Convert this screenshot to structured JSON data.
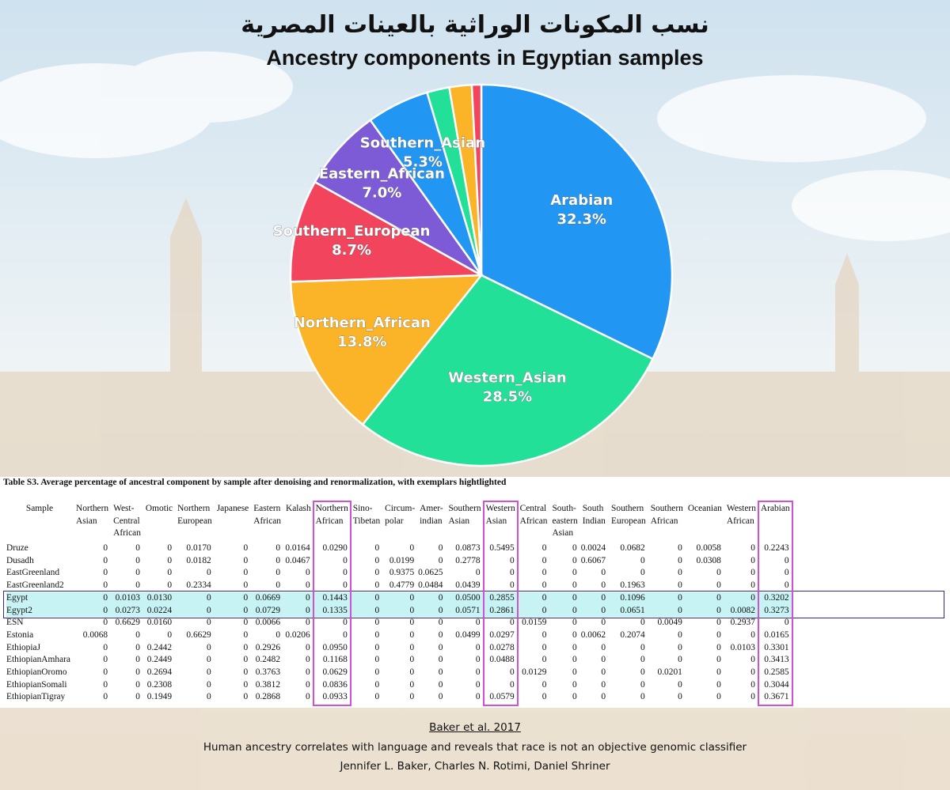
{
  "title_ar": "نسب المكونات الوراثية بالعينات المصرية",
  "title_en": "Ancestry components in Egyptian samples",
  "chart_data": {
    "type": "pie",
    "title": "Ancestry components in Egyptian samples",
    "slices": [
      {
        "label": "Arabian",
        "value": 32.3,
        "value_label": "32.3%",
        "color": "#2196f3"
      },
      {
        "label": "Western_Asian",
        "value": 28.5,
        "value_label": "28.5%",
        "color": "#22e098"
      },
      {
        "label": "Northern_African",
        "value": 13.8,
        "value_label": "13.8%",
        "color": "#fbb328"
      },
      {
        "label": "Southern_European",
        "value": 8.7,
        "value_label": "8.7%",
        "color": "#f2445c"
      },
      {
        "label": "Eastern_African",
        "value": 7.0,
        "value_label": "7.0%",
        "color": "#7d5bd6"
      },
      {
        "label": "Southern_Asian",
        "value": 5.3,
        "value_label": "5.3%",
        "color": "#2196f3"
      },
      {
        "label": "",
        "value": 1.9,
        "value_label": "",
        "color": "#22e098"
      },
      {
        "label": "",
        "value": 1.9,
        "value_label": "",
        "color": "#fbb328"
      },
      {
        "label": "",
        "value": 0.8,
        "value_label": "",
        "color": "#f2445c"
      }
    ]
  },
  "table": {
    "caption": "Table S3. Average percentage of ancestral component by sample after denoising and renormalization, with exemplars hightlighted",
    "columns": [
      "Sample",
      "Northern\nAsian",
      "West-\nCentral\nAfrican",
      "Omotic",
      "Northern\nEuropean",
      "Japanese",
      "Eastern\nAfrican",
      "Kalash",
      "Northern\nAfrican",
      "Sino-\nTibetan",
      "Circum-\npolar",
      "Amer-\nindian",
      "Southern\nAsian",
      "Western\nAsian",
      "Central\nAfrican",
      "South-\neastern\nAsian",
      "South\nIndian",
      "Southern\nEuropean",
      "Southern\nAfrican",
      "Oceanian",
      "Western\nAfrican",
      "Arabian"
    ],
    "rows": [
      [
        "Druze",
        "0",
        "0",
        "0",
        "0.0170",
        "0",
        "0",
        "0.0164",
        "0.0290",
        "0",
        "0",
        "0",
        "0.0873",
        "0.5495",
        "0",
        "0",
        "0.0024",
        "0.0682",
        "0",
        "0.0058",
        "0",
        "0.2243"
      ],
      [
        "Dusadh",
        "0",
        "0",
        "0",
        "0.0182",
        "0",
        "0",
        "0.0467",
        "0",
        "0",
        "0.0199",
        "0",
        "0.2778",
        "0",
        "0",
        "0",
        "0.6067",
        "0",
        "0",
        "0.0308",
        "0",
        "0"
      ],
      [
        "EastGreenland",
        "0",
        "0",
        "0",
        "0",
        "0",
        "0",
        "0",
        "0",
        "0",
        "0.9375",
        "0.0625",
        "0",
        "0",
        "0",
        "0",
        "0",
        "0",
        "0",
        "0",
        "0",
        "0"
      ],
      [
        "EastGreenland2",
        "0",
        "0",
        "0",
        "0.2334",
        "0",
        "0",
        "0",
        "0",
        "0",
        "0.4779",
        "0.0484",
        "0.0439",
        "0",
        "0",
        "0",
        "0",
        "0.1963",
        "0",
        "0",
        "0",
        "0"
      ],
      [
        "Egypt",
        "0",
        "0.0103",
        "0.0130",
        "0",
        "0",
        "0.0669",
        "0",
        "0.1443",
        "0",
        "0",
        "0",
        "0.0500",
        "0.2855",
        "0",
        "0",
        "0",
        "0.1096",
        "0",
        "0",
        "0",
        "0.3202"
      ],
      [
        "Egypt2",
        "0",
        "0.0273",
        "0.0224",
        "0",
        "0",
        "0.0729",
        "0",
        "0.1335",
        "0",
        "0",
        "0",
        "0.0571",
        "0.2861",
        "0",
        "0",
        "0",
        "0.0651",
        "0",
        "0",
        "0.0082",
        "0.3273"
      ],
      [
        "ESN",
        "0",
        "0.6629",
        "0.0160",
        "0",
        "0",
        "0.0066",
        "0",
        "0",
        "0",
        "0",
        "0",
        "0",
        "0",
        "0.0159",
        "0",
        "0",
        "0",
        "0.0049",
        "0",
        "0.2937",
        "0"
      ],
      [
        "Estonia",
        "0.0068",
        "0",
        "0",
        "0.6629",
        "0",
        "0",
        "0.0206",
        "0",
        "0",
        "0",
        "0",
        "0.0499",
        "0.0297",
        "0",
        "0",
        "0.0062",
        "0.2074",
        "0",
        "0",
        "0",
        "0.0165"
      ],
      [
        "EthiopiaJ",
        "0",
        "0",
        "0.2442",
        "0",
        "0",
        "0.2926",
        "0",
        "0.0950",
        "0",
        "0",
        "0",
        "0",
        "0.0278",
        "0",
        "0",
        "0",
        "0",
        "0",
        "0",
        "0.0103",
        "0.3301"
      ],
      [
        "EthiopianAmhara",
        "0",
        "0",
        "0.2449",
        "0",
        "0",
        "0.2482",
        "0",
        "0.1168",
        "0",
        "0",
        "0",
        "0",
        "0.0488",
        "0",
        "0",
        "0",
        "0",
        "0",
        "0",
        "0",
        "0.3413"
      ],
      [
        "EthiopianOromo",
        "0",
        "0",
        "0.2694",
        "0",
        "0",
        "0.3763",
        "0",
        "0.0629",
        "0",
        "0",
        "0",
        "0",
        "0",
        "0.0129",
        "0",
        "0",
        "0",
        "0.0201",
        "0",
        "0",
        "0.2585"
      ],
      [
        "EthiopianSomali",
        "0",
        "0",
        "0.2308",
        "0",
        "0",
        "0.3812",
        "0",
        "0.0836",
        "0",
        "0",
        "0",
        "0",
        "0",
        "0",
        "0",
        "0",
        "0",
        "0",
        "0",
        "0",
        "0.3044"
      ],
      [
        "EthiopianTigray",
        "0",
        "0",
        "0.1949",
        "0",
        "0",
        "0.2868",
        "0",
        "0.0933",
        "0",
        "0",
        "0",
        "0",
        "0.0579",
        "0",
        "0",
        "0",
        "0",
        "0",
        "0",
        "0",
        "0.3671"
      ]
    ],
    "highlighted_columns": [
      "Northern\nAfrican",
      "Western\nAsian",
      "Arabian"
    ],
    "highlighted_rows": [
      "Egypt",
      "Egypt2"
    ],
    "highlight_color": "#d34fd3",
    "row_box_color": "#2a2aa6"
  },
  "citation": {
    "ref": "Baker et al. 2017",
    "title": "Human ancestry correlates with language and reveals that race is not an objective genomic classifier",
    "authors": "Jennifer L. Baker, Charles N. Rotimi, Daniel Shriner"
  }
}
